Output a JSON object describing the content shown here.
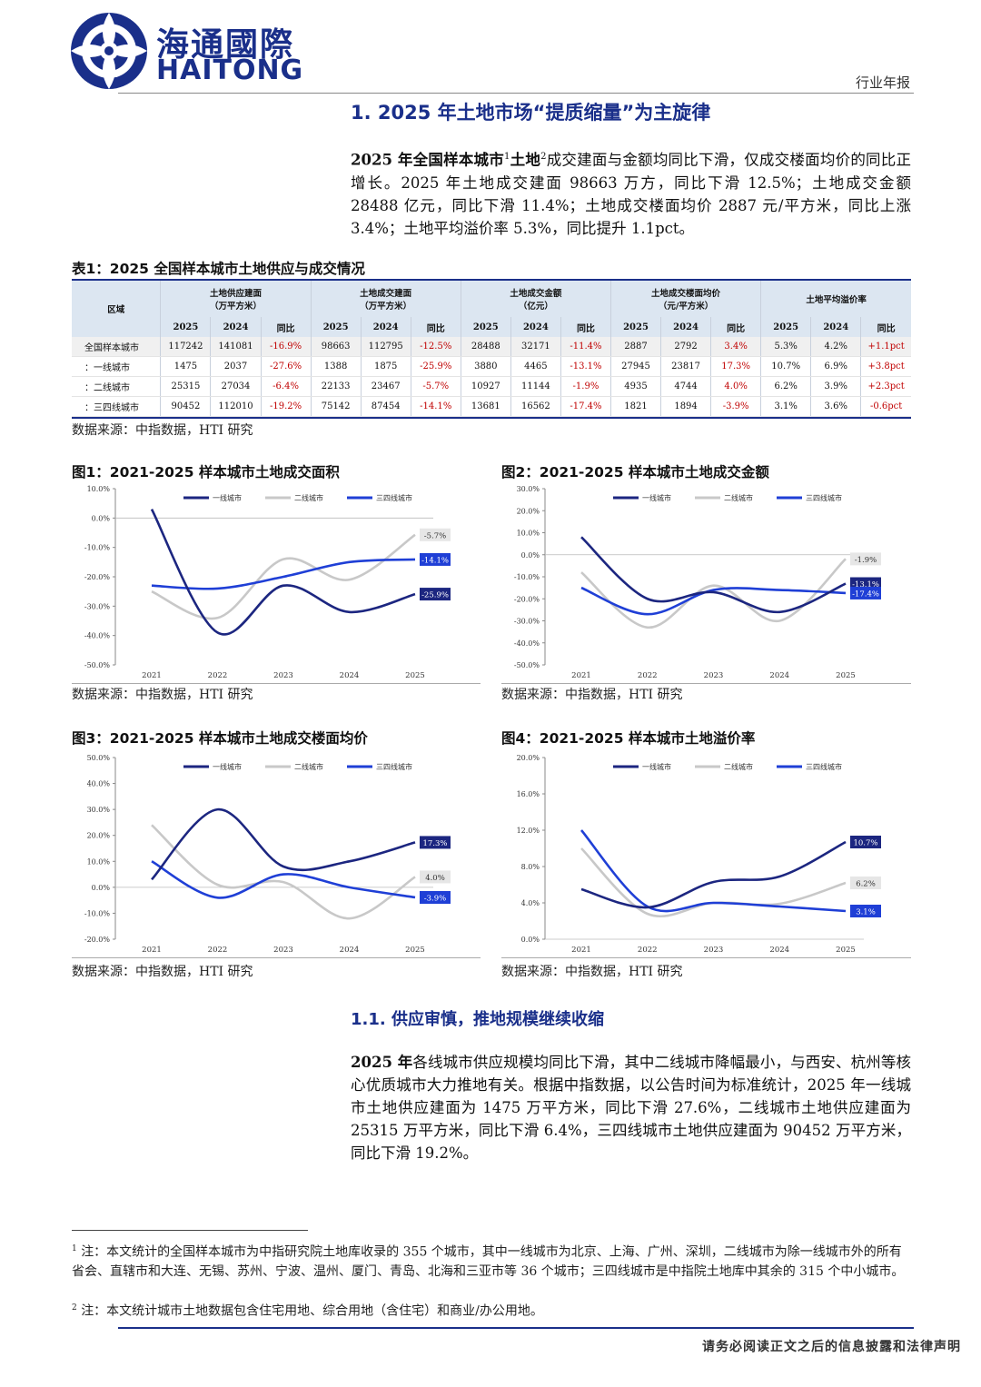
{
  "header": {
    "brand_cn": "海通國際",
    "brand_en": "HAITONG",
    "report_type": "行业年报"
  },
  "section1": {
    "heading": "1.  2025 年土地市场“提质缩量”为主旋律",
    "para_lead": "2025 年全国样本城市",
    "para_sup1": "1",
    "para_mid": "土地",
    "para_sup2": "2",
    "para_rest": "成交建面与金额均同比下滑，仅成交楼面均价的同比正增长。2025 年土地成交建面 98663 万方，同比下滑 12.5%；土地成交金额 28488 亿元，同比下滑 11.4%；土地成交楼面均价 2887 元/平方米，同比上涨 3.4%；土地平均溢价率 5.3%，同比提升 1.1pct。"
  },
  "table": {
    "caption": "表1：2025 全国样本城市土地供应与成交情况",
    "region_header": "区域",
    "groups": [
      {
        "label1": "土地供应建面",
        "label2": "（万平方米）"
      },
      {
        "label1": "土地成交建面",
        "label2": "（万平方米）"
      },
      {
        "label1": "土地成交金额",
        "label2": "（亿元）"
      },
      {
        "label1": "土地成交楼面均价",
        "label2": "（元/平方米）"
      },
      {
        "label1": "土地平均溢价率",
        "label2": ""
      }
    ],
    "subheaders": [
      "2025",
      "2024",
      "同比"
    ],
    "rows": [
      {
        "name": "全国样本城市",
        "cells": [
          "117242",
          "141081",
          "-16.9%",
          "98663",
          "112795",
          "-12.5%",
          "28488",
          "32171",
          "-11.4%",
          "2887",
          "2792",
          "3.4%",
          "5.3%",
          "4.2%",
          "+1.1pct"
        ]
      },
      {
        "name": "：一线城市",
        "cells": [
          "1475",
          "2037",
          "-27.6%",
          "1388",
          "1875",
          "-25.9%",
          "3880",
          "4465",
          "-13.1%",
          "27945",
          "23817",
          "17.3%",
          "10.7%",
          "6.9%",
          "+3.8pct"
        ]
      },
      {
        "name": "：二线城市",
        "cells": [
          "25315",
          "27034",
          "-6.4%",
          "22133",
          "23467",
          "-5.7%",
          "10927",
          "11144",
          "-1.9%",
          "4935",
          "4744",
          "4.0%",
          "6.2%",
          "3.9%",
          "+2.3pct"
        ]
      },
      {
        "name": "：三四线城市",
        "cells": [
          "90452",
          "112010",
          "-19.2%",
          "75142",
          "87454",
          "-14.1%",
          "13681",
          "16562",
          "-17.4%",
          "1821",
          "1894",
          "-3.9%",
          "3.1%",
          "3.6%",
          "-0.6pct"
        ]
      }
    ],
    "source": "数据来源：中指数据，HTI 研究"
  },
  "chart_data": [
    {
      "type": "line",
      "title": "图1：2021-2025 样本城市土地成交面积",
      "categories": [
        "2021",
        "2022",
        "2023",
        "2024",
        "2025"
      ],
      "ylim": [
        -50,
        10
      ],
      "yticks": [
        "10.0%",
        "0.0%",
        "-10.0%",
        "-20.0%",
        "-30.0%",
        "-40.0%",
        "-50.0%"
      ],
      "series": [
        {
          "name": "一线城市",
          "color": "#1c2680",
          "values": [
            3,
            -39,
            -23,
            -32,
            -25.9
          ]
        },
        {
          "name": "二线城市",
          "color": "#c8c8c8",
          "values": [
            -25,
            -34,
            -14,
            -21,
            -5.7
          ]
        },
        {
          "name": "三四线城市",
          "color": "#1f3fd6",
          "values": [
            -23,
            -24,
            -20,
            -15,
            -14.1
          ]
        }
      ],
      "end_labels": [
        "-5.7%",
        "-14.1%",
        "-25.9%"
      ],
      "source": "数据来源：中指数据，HTI 研究"
    },
    {
      "type": "line",
      "title": "图2：2021-2025 样本城市土地成交金额",
      "categories": [
        "2021",
        "2022",
        "2023",
        "2024",
        "2025"
      ],
      "ylim": [
        -50,
        30
      ],
      "yticks": [
        "30.0%",
        "20.0%",
        "10.0%",
        "0.0%",
        "-10.0%",
        "-20.0%",
        "-30.0%",
        "-40.0%",
        "-50.0%"
      ],
      "series": [
        {
          "name": "一线城市",
          "color": "#1c2680",
          "values": [
            8,
            -20,
            -17,
            -26,
            -13.1
          ]
        },
        {
          "name": "二线城市",
          "color": "#c8c8c8",
          "values": [
            -8,
            -33,
            -14,
            -30,
            -1.9
          ]
        },
        {
          "name": "三四线城市",
          "color": "#1f3fd6",
          "values": [
            -15,
            -27,
            -16,
            -16,
            -17.4
          ]
        }
      ],
      "end_labels": [
        "-1.9%",
        "-17.4%",
        "-13.1%"
      ],
      "source": "数据来源：中指数据，HTI 研究"
    },
    {
      "type": "line",
      "title": "图3：2021-2025 样本城市土地成交楼面均价",
      "categories": [
        "2021",
        "2022",
        "2023",
        "2024",
        "2025"
      ],
      "ylim": [
        -20,
        50
      ],
      "yticks": [
        "50.0%",
        "40.0%",
        "30.0%",
        "20.0%",
        "10.0%",
        "0.0%",
        "-10.0%",
        "-20.0%"
      ],
      "series": [
        {
          "name": "一线城市",
          "color": "#1c2680",
          "values": [
            3,
            30,
            8,
            10,
            17.3
          ]
        },
        {
          "name": "二线城市",
          "color": "#c8c8c8",
          "values": [
            24,
            1,
            2,
            -12,
            4.0
          ]
        },
        {
          "name": "三四线城市",
          "color": "#1f3fd6",
          "values": [
            10,
            -4,
            5,
            0,
            -3.9
          ]
        }
      ],
      "end_labels": [
        "17.3%",
        "4.0%",
        "-3.9%"
      ],
      "source": "数据来源：中指数据，HTI 研究"
    },
    {
      "type": "line",
      "title": "图4：2021-2025 样本城市土地溢价率",
      "categories": [
        "2021",
        "2022",
        "2023",
        "2024",
        "2025"
      ],
      "ylim": [
        0,
        20
      ],
      "yticks": [
        "20.0%",
        "16.0%",
        "12.0%",
        "8.0%",
        "4.0%",
        "0.0%"
      ],
      "series": [
        {
          "name": "一线城市",
          "color": "#1c2680",
          "values": [
            5.5,
            3.5,
            6.3,
            6.9,
            10.7
          ]
        },
        {
          "name": "二线城市",
          "color": "#c8c8c8",
          "values": [
            10,
            2.8,
            4.0,
            3.9,
            6.2
          ]
        },
        {
          "name": "三四线城市",
          "color": "#1f3fd6",
          "values": [
            12,
            3.6,
            4.0,
            3.6,
            3.1
          ]
        }
      ],
      "end_labels": [
        "10.7%",
        "6.2%",
        "3.1%"
      ],
      "source": "数据来源：中指数据，HTI 研究"
    }
  ],
  "section11": {
    "heading": "1.1.  供应审慎，推地规模继续收缩",
    "para_lead": "2025 年",
    "para_rest": "各线城市供应规模均同比下滑，其中二线城市降幅最小，与西安、杭州等核心优质城市大力推地有关。根据中指数据，以公告时间为标准统计，2025 年一线城市土地供应建面为 1475 万平方米，同比下滑 27.6%，二线城市土地供应建面为 25315 万平方米，同比下滑 6.4%，三四线城市土地供应建面为 90452 万平方米，同比下滑 19.2%。"
  },
  "footnotes": {
    "fn1_mark": "1",
    "fn1": "注：本文统计的全国样本城市为中指研究院土地库收录的 355 个城市，其中一线城市为北京、上海、广州、深圳，二线城市为除一线城市外的所有省会、直辖市和大连、无锡、苏州、宁波、温州、厦门、青岛、北海和三亚市等 36 个城市；三四线城市是中指院土地库中其余的 315 个中小城市。",
    "fn2_mark": "2",
    "fn2": "注：本文统计城市土地数据包含住宅用地、综合用地（含住宅）和商业/办公用地。"
  },
  "footer": {
    "disclaimer": "请务必阅读正文之后的信息披露和法律声明"
  }
}
